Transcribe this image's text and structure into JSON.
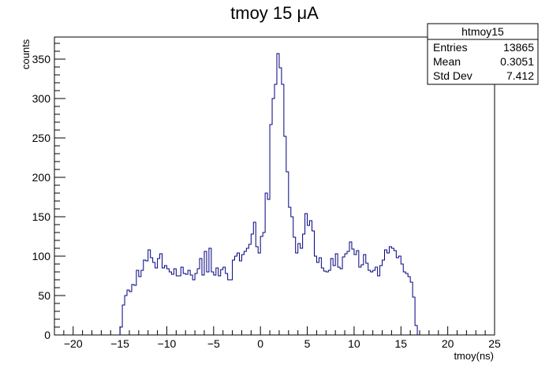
{
  "chart_data": {
    "type": "histogram",
    "title_main": "tmoy 15 ",
    "title_unit": "μA",
    "xlabel": "tmoy(ns)",
    "ylabel": "counts",
    "xlim": [
      -22,
      25
    ],
    "ylim": [
      0,
      378
    ],
    "x_major_ticks": [
      -20,
      -15,
      -10,
      -5,
      0,
      5,
      10,
      15,
      20,
      25
    ],
    "x_tick_labels": [
      "−20",
      "−15",
      "−10",
      "−5",
      "0",
      "5",
      "10",
      "15",
      "20",
      "25"
    ],
    "y_major_ticks": [
      0,
      50,
      100,
      150,
      200,
      250,
      300,
      350
    ],
    "y_tick_labels": [
      "0",
      "50",
      "100",
      "150",
      "200",
      "250",
      "300",
      "350"
    ],
    "line_color": "#000080",
    "bin_width": 0.25,
    "bin_start": -15.0,
    "counts": [
      10,
      38,
      50,
      57,
      55,
      64,
      63,
      82,
      74,
      82,
      95,
      94,
      108,
      98,
      92,
      85,
      97,
      103,
      85,
      88,
      84,
      80,
      77,
      84,
      75,
      75,
      86,
      78,
      77,
      82,
      76,
      70,
      78,
      84,
      97,
      76,
      106,
      80,
      110,
      80,
      76,
      85,
      75,
      83,
      86,
      78,
      70,
      70,
      95,
      100,
      104,
      94,
      102,
      106,
      110,
      115,
      128,
      143,
      112,
      104,
      125,
      130,
      180,
      172,
      267,
      300,
      318,
      357,
      339,
      318,
      252,
      207,
      162,
      150,
      124,
      104,
      116,
      110,
      128,
      154,
      139,
      145,
      132,
      100,
      92,
      98,
      85,
      81,
      80,
      82,
      97,
      88,
      103,
      86,
      84,
      99,
      103,
      106,
      118,
      109,
      102,
      107,
      86,
      89,
      102,
      91,
      82,
      80,
      82,
      86,
      75,
      88,
      95,
      108,
      104,
      112,
      110,
      107,
      98,
      100,
      90,
      80,
      78,
      74,
      67,
      48,
      12
    ],
    "stats": {
      "name": "htmoy15",
      "rows": [
        {
          "label": "Entries",
          "value": "13865"
        },
        {
          "label": "Mean",
          "value": "0.3051"
        },
        {
          "label": "Std Dev",
          "value": "7.412"
        }
      ]
    }
  }
}
